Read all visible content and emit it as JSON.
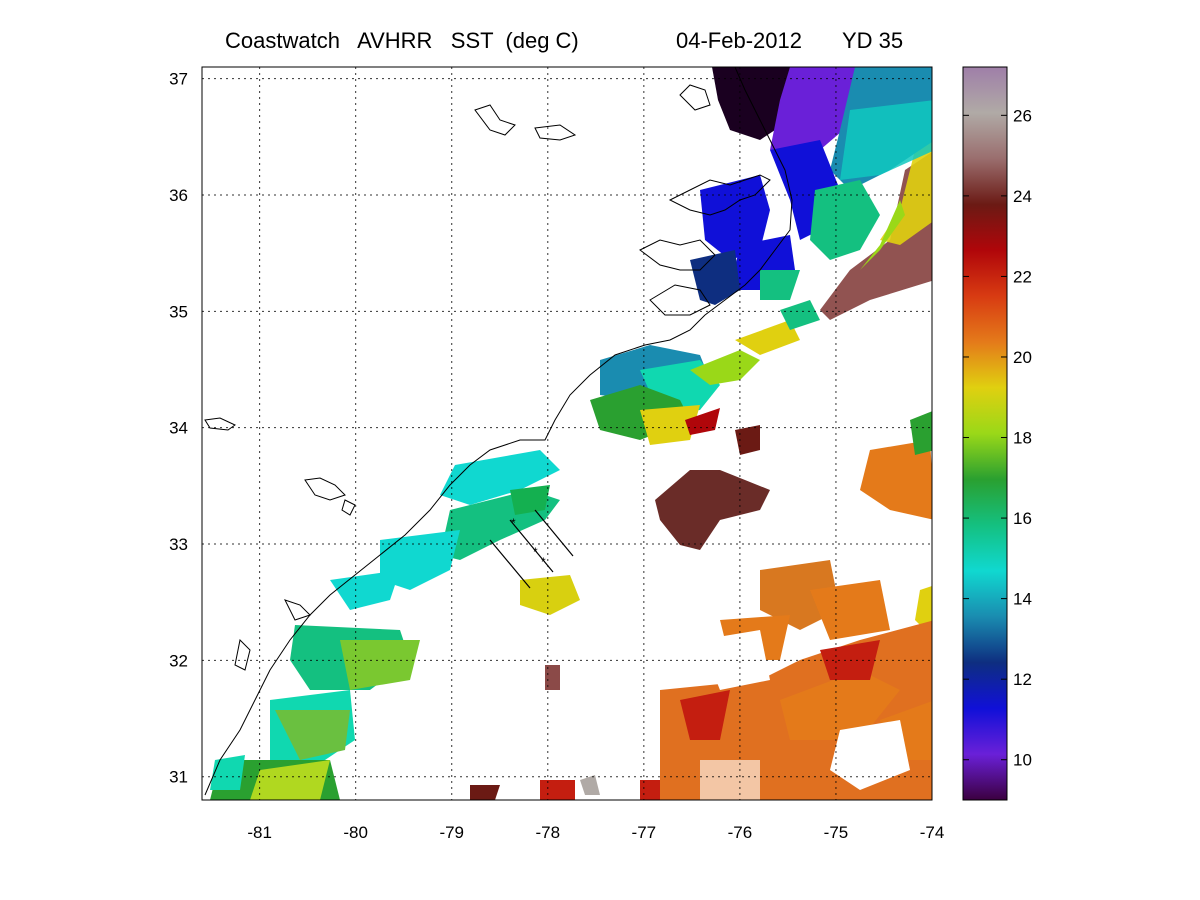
{
  "title": {
    "product": "Coastwatch   AVHRR   SST  (deg C)",
    "date": "04-Feb-2012",
    "yearday": "YD 35"
  },
  "map": {
    "x_ticks": [
      "-81",
      "-80",
      "-79",
      "-78",
      "-77",
      "-76",
      "-75",
      "-74"
    ],
    "y_ticks": [
      "37",
      "36",
      "35",
      "34",
      "33",
      "32",
      "31"
    ],
    "lon_range": [
      -81.6,
      -74
    ],
    "lat_range": [
      30.8,
      37.1
    ],
    "grid": "dotted"
  },
  "colorbar": {
    "ticks": [
      "26",
      "24",
      "22",
      "20",
      "18",
      "16",
      "14",
      "12",
      "10"
    ],
    "range": [
      9,
      27.2
    ],
    "stops": [
      "#9f7fa8",
      "#b0aaa6",
      "#9a6e6e",
      "#6b1a14",
      "#b0060a",
      "#d83b12",
      "#e47a1a",
      "#e0d010",
      "#9ad818",
      "#2aa030",
      "#14c080",
      "#10d8d0",
      "#1a8cb0",
      "#0e2e80",
      "#1010d8",
      "#6a20d8",
      "#3c0040"
    ]
  },
  "colors": {
    "land_line": "#000000",
    "background": "#ffffff"
  }
}
